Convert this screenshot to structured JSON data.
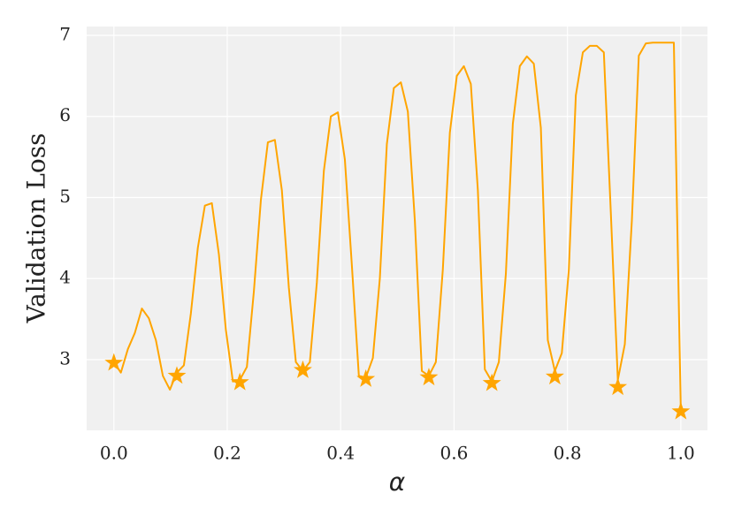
{
  "chart_data": {
    "type": "line",
    "xlabel": "α",
    "ylabel": "Validation Loss",
    "xlim": [
      -0.048,
      1.047
    ],
    "ylim": [
      2.128,
      7.109
    ],
    "xticks": [
      {
        "value": 0,
        "label": "0.0"
      },
      0.2,
      0.4,
      0.6,
      0.8,
      {
        "value": 1,
        "label": "1.0"
      }
    ],
    "yticks": [
      3,
      4,
      5,
      6,
      7
    ],
    "grid": true,
    "series": [
      {
        "color": "#ffa500",
        "marker": "none",
        "x": [
          0,
          0.0123,
          0.0247,
          0.037,
          0.0494,
          0.0617,
          0.0741,
          0.0864,
          0.0988,
          0.1111,
          0.1235,
          0.1358,
          0.1481,
          0.1605,
          0.1728,
          0.1852,
          0.1975,
          0.2099,
          0.2222,
          0.2346,
          0.2469,
          0.2593,
          0.2716,
          0.284,
          0.2963,
          0.3086,
          0.321,
          0.3333,
          0.3457,
          0.358,
          0.3704,
          0.3827,
          0.3951,
          0.4074,
          0.4198,
          0.4321,
          0.4444,
          0.4568,
          0.4691,
          0.4815,
          0.4938,
          0.5062,
          0.5185,
          0.5309,
          0.5432,
          0.5556,
          0.5679,
          0.5802,
          0.5926,
          0.6049,
          0.6173,
          0.6296,
          0.642,
          0.6543,
          0.6667,
          0.679,
          0.6914,
          0.7037,
          0.716,
          0.7284,
          0.7407,
          0.7531,
          0.7654,
          0.7778,
          0.7901,
          0.8025,
          0.8148,
          0.8272,
          0.8395,
          0.8519,
          0.8642,
          0.8765,
          0.8889,
          0.9012,
          0.9136,
          0.9259,
          0.9383,
          0.9506,
          0.963,
          0.9753,
          0.9877,
          1
        ],
        "values": [
          2.97,
          2.84,
          3.13,
          3.33,
          3.63,
          3.51,
          3.24,
          2.8,
          2.63,
          2.84,
          2.93,
          3.57,
          4.38,
          4.9,
          4.93,
          4.3,
          3.37,
          2.73,
          2.75,
          2.91,
          3.84,
          4.97,
          5.68,
          5.71,
          5.09,
          3.89,
          2.97,
          2.86,
          2.97,
          3.95,
          5.33,
          6.0,
          6.05,
          5.47,
          4.16,
          2.8,
          2.78,
          3.02,
          4.0,
          5.66,
          6.35,
          6.42,
          6.06,
          4.71,
          2.86,
          2.8,
          2.97,
          4.11,
          5.8,
          6.5,
          6.62,
          6.4,
          5.09,
          2.88,
          2.73,
          2.97,
          4.06,
          5.91,
          6.62,
          6.74,
          6.65,
          5.86,
          3.24,
          2.86,
          3.08,
          4.11,
          6.26,
          6.79,
          6.87,
          6.87,
          6.79,
          4.82,
          2.75,
          3.19,
          4.71,
          6.75,
          6.9,
          6.91,
          6.91,
          6.91,
          6.91,
          2.37
        ]
      },
      {
        "color": "#ffa500",
        "marker": "star",
        "x": [
          0,
          0.1111,
          0.2222,
          0.3333,
          0.4444,
          0.5556,
          0.6667,
          0.7778,
          0.8889,
          1
        ],
        "values": [
          2.96,
          2.8,
          2.72,
          2.87,
          2.76,
          2.78,
          2.71,
          2.79,
          2.66,
          2.36
        ]
      }
    ]
  }
}
